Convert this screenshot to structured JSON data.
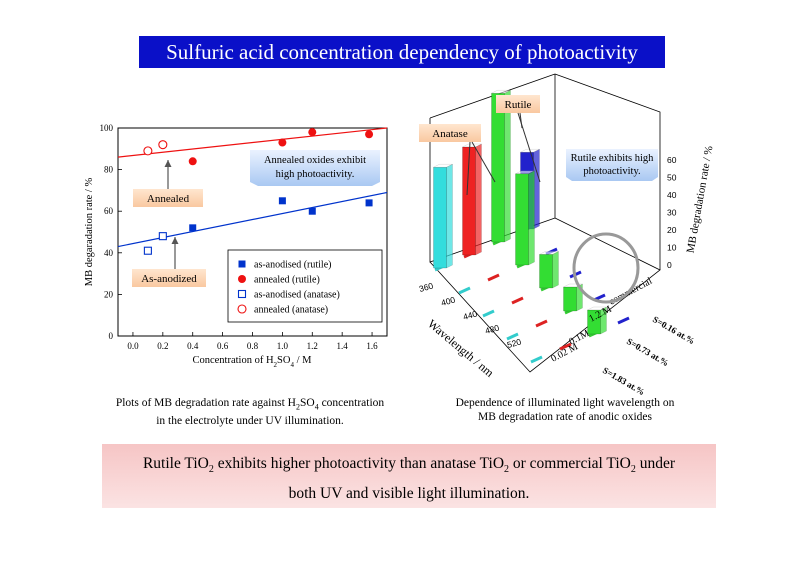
{
  "title": "Sulfuric acid concentration dependency of photoactivity",
  "chart_data": [
    {
      "type": "scatter",
      "xlabel": "Concentration of H2SO4 / M",
      "ylabel": "MB degaradation rate / %",
      "xlim": [
        -0.1,
        1.7
      ],
      "ylim": [
        0,
        100
      ],
      "xticks": [
        "0.0",
        "0.2",
        "0.4",
        "0.6",
        "0.8",
        "1.0",
        "1.2",
        "1.4",
        "1.6"
      ],
      "yticks": [
        "0",
        "20",
        "40",
        "60",
        "80",
        "100"
      ],
      "legend_position": "bottom-right",
      "series": [
        {
          "name": "as-anodised (rutile)",
          "marker": "filled-square",
          "color": "#0033cc",
          "points": [
            [
              0.4,
              52
            ],
            [
              1.0,
              65
            ],
            [
              1.2,
              60
            ],
            [
              1.58,
              64
            ]
          ]
        },
        {
          "name": "annealed (rutile)",
          "marker": "filled-circle",
          "color": "#ee1111",
          "points": [
            [
              0.4,
              84
            ],
            [
              1.0,
              93
            ],
            [
              1.2,
              98
            ],
            [
              1.58,
              97
            ]
          ]
        },
        {
          "name": "as-anodised (anatase)",
          "marker": "open-square",
          "color": "#0033cc",
          "points": [
            [
              0.1,
              41
            ],
            [
              0.2,
              48
            ]
          ]
        },
        {
          "name": "annealed (anatase)",
          "marker": "open-circle",
          "color": "#ee1111",
          "points": [
            [
              0.1,
              89
            ],
            [
              0.2,
              92
            ]
          ]
        }
      ],
      "fits": [
        {
          "color": "#ee1111",
          "from": [
            -0.1,
            86
          ],
          "to": [
            1.7,
            100
          ]
        },
        {
          "color": "#0033cc",
          "from": [
            -0.1,
            43
          ],
          "to": [
            1.7,
            69
          ]
        }
      ],
      "annotations": [
        "Annealed",
        "As-anodized",
        "Annealed oxides exhibit high photoactivity."
      ]
    },
    {
      "type": "bar3d",
      "zlabel": "MB degradation rate / %",
      "zticks": [
        "0",
        "10",
        "20",
        "30",
        "40",
        "50",
        "60"
      ],
      "xlabel": "Wavelength / nm",
      "wavelengths": [
        "360",
        "400",
        "440",
        "480",
        "520"
      ],
      "depth_labels": [
        "commercial",
        "1.2 M",
        "0.1M",
        "0.02 M"
      ],
      "depth_notes": [
        "S=0.16 at.%",
        "S=0.73 at.%",
        "S=1.83 at.%"
      ],
      "bars": [
        {
          "row": "0.02 M",
          "wavelength": "360",
          "value": 42,
          "color": "#33dddd"
        },
        {
          "row": "0.1M",
          "wavelength": "360",
          "value": 45,
          "color": "#ee2222"
        },
        {
          "row": "1.2 M",
          "wavelength": "360",
          "value": 62,
          "color": "#33dd33"
        },
        {
          "row": "1.2 M",
          "wavelength": "400",
          "value": 38,
          "color": "#33dd33"
        },
        {
          "row": "commercial",
          "wavelength": "360",
          "value": 32,
          "color": "#2222cc"
        },
        {
          "row": "1.2 M",
          "wavelength": "440",
          "value": 14,
          "color": "#33dd33"
        },
        {
          "row": "1.2 M",
          "wavelength": "480",
          "value": 10,
          "color": "#33dd33"
        },
        {
          "row": "1.2 M",
          "wavelength": "520",
          "value": 10,
          "color": "#33dd33"
        }
      ],
      "annotations": [
        "Anatase",
        "Rutile",
        "Rutile exhibits high photoactivity."
      ]
    }
  ],
  "captions": {
    "left": [
      "Plots of MB degradation rate against H2SO4 concentration",
      "in the electrolyte under UV illumination."
    ],
    "right": [
      "Dependence of illuminated light wavelength on",
      "MB degradation rate of anodic oxides"
    ]
  },
  "conclusion": {
    "line1": "Rutile TiO2 exhibits higher photoactivity than anatase TiO2 or commercial TiO2 under",
    "line2": "both UV and visible light illumination."
  }
}
